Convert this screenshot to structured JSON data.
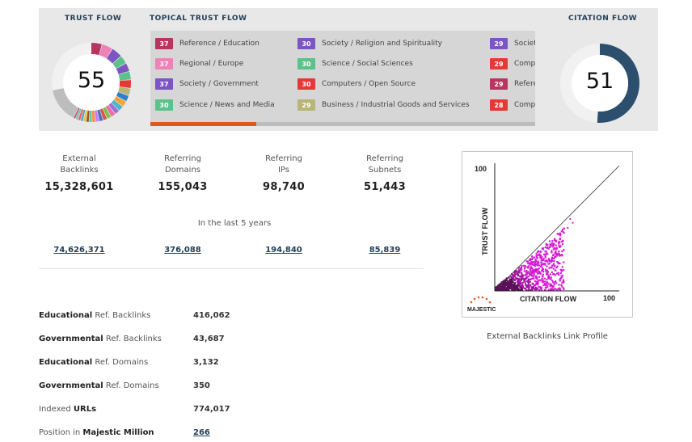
{
  "trust_flow": {
    "title": "TRUST FLOW",
    "value": "55"
  },
  "citation_flow": {
    "title": "CITATION FLOW",
    "value": "51",
    "color": "#2c4f6e"
  },
  "topical_trust_flow": {
    "title": "TOPICAL TRUST FLOW",
    "columns": [
      [
        {
          "score": "37",
          "label": "Reference / Education",
          "color": "#b7355f"
        },
        {
          "score": "37",
          "label": "Regional / Europe",
          "color": "#ee82b6"
        },
        {
          "score": "37",
          "label": "Society / Government",
          "color": "#7b55c0"
        },
        {
          "score": "30",
          "label": "Science / News and Media",
          "color": "#5cc28b"
        }
      ],
      [
        {
          "score": "30",
          "label": "Society / Religion and Spirituality",
          "color": "#7b55c0"
        },
        {
          "score": "30",
          "label": "Science / Social Sciences",
          "color": "#5cc28b"
        },
        {
          "score": "30",
          "label": "Computers / Open Source",
          "color": "#e53935"
        },
        {
          "score": "29",
          "label": "Business / Industrial Goods and Services",
          "color": "#b9b577"
        }
      ],
      [
        {
          "score": "29",
          "label": "Societ",
          "color": "#7b55c0"
        },
        {
          "score": "29",
          "label": "Comp",
          "color": "#e53935"
        },
        {
          "score": "29",
          "label": "Refere",
          "color": "#b7355f"
        },
        {
          "score": "28",
          "label": "Comp",
          "color": "#e53935"
        }
      ]
    ],
    "scroll_position": 0.275
  },
  "stats": [
    {
      "label_line1": "External",
      "label_line2": "Backlinks",
      "value": "15,328,601",
      "historic": "74,626,371"
    },
    {
      "label_line1": "Referring",
      "label_line2": "Domains",
      "value": "155,043",
      "historic": "376,088"
    },
    {
      "label_line1": "Referring",
      "label_line2": "IPs",
      "value": "98,740",
      "historic": "194,840"
    },
    {
      "label_line1": "Referring",
      "label_line2": "Subnets",
      "value": "51,443",
      "historic": "85,839"
    }
  ],
  "historic_caption": "In the last 5 years",
  "ref_stats": [
    {
      "bold": "Educational",
      "rest": " Ref. Backlinks",
      "value": "416,062"
    },
    {
      "bold": "Governmental",
      "rest": " Ref. Backlinks",
      "value": "43,687"
    },
    {
      "bold": "Educational",
      "rest": " Ref. Domains",
      "value": "3,132"
    },
    {
      "bold": "Governmental",
      "rest": " Ref. Domains",
      "value": "350"
    },
    {
      "bold": "",
      "pre": "Indexed ",
      "bold2": "URLs",
      "value": "774,017"
    },
    {
      "bold": "",
      "pre": "Position in ",
      "bold2": "Majestic Million",
      "value": "266"
    }
  ],
  "link_profile": {
    "caption": "External Backlinks Link Profile",
    "y_label": "TRUST FLOW",
    "x_label": "CITATION FLOW",
    "y_max_label": "100",
    "x_max_label": "100",
    "logo_text": "MAJESTIC",
    "point_color": "#d61ad6"
  }
}
